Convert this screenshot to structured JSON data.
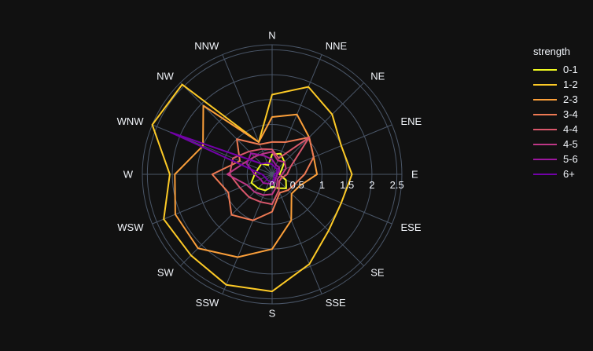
{
  "chart_data": {
    "type": "line-polar",
    "directions": [
      "N",
      "NNE",
      "NE",
      "ENE",
      "E",
      "ESE",
      "SE",
      "SSE",
      "S",
      "SSW",
      "SW",
      "WSW",
      "W",
      "WNW",
      "NW",
      "NNW"
    ],
    "radial_ticks": [
      "0",
      "0.5",
      "1",
      "1.5",
      "2",
      "2.5"
    ],
    "radial_range": [
      0,
      2.6
    ],
    "legend_title": "strength",
    "legend_position": "top-right",
    "series": [
      {
        "name": "0-1",
        "color": "#f0f921",
        "values": [
          0.4,
          0.45,
          0.35,
          0.2,
          0.15,
          0.3,
          0.4,
          0.3,
          0.25,
          0.35,
          0.4,
          0.45,
          0.35,
          0.3,
          0.3,
          0.2
        ]
      },
      {
        "name": "1-2",
        "color": "#fdca26",
        "values": [
          1.6,
          1.9,
          1.7,
          1.5,
          1.6,
          1.5,
          1.6,
          1.95,
          2.35,
          2.4,
          2.3,
          2.35,
          2.05,
          2.6,
          2.55,
          0.7
        ]
      },
      {
        "name": "2-3",
        "color": "#fb9f3a",
        "values": [
          1.15,
          1.3,
          1.05,
          0.9,
          0.9,
          0.6,
          0.55,
          1.0,
          1.5,
          1.8,
          2.1,
          2.1,
          1.95,
          1.5,
          1.95,
          0.7
        ]
      },
      {
        "name": "3-4",
        "color": "#ed7953",
        "values": [
          0.65,
          0.7,
          1.05,
          0.9,
          0.65,
          0.5,
          0.45,
          0.4,
          0.75,
          1.0,
          1.15,
          0.95,
          1.2,
          0.7,
          1.0,
          0.65
        ]
      },
      {
        "name": "4-4",
        "color": "#d8576b",
        "values": [
          0.5,
          0.35,
          1.05,
          0.4,
          0.3,
          0.2,
          0.2,
          0.35,
          0.6,
          0.6,
          0.65,
          0.7,
          0.85,
          0.85,
          0.65,
          0.55
        ]
      },
      {
        "name": "4-5",
        "color": "#bd3786",
        "values": [
          0.45,
          0.3,
          0.35,
          0.3,
          0.2,
          0.15,
          0.15,
          0.25,
          0.4,
          0.45,
          0.5,
          0.55,
          0.9,
          0.6,
          0.5,
          0.45
        ]
      },
      {
        "name": "5-6",
        "color": "#9c179e",
        "values": [
          0.3,
          0.2,
          0.2,
          0.15,
          0.1,
          0.1,
          0.1,
          0.15,
          0.2,
          0.2,
          0.25,
          0.25,
          0.35,
          0.55,
          0.6,
          0.4
        ]
      },
      {
        "name": "6+",
        "color": "#7201a8",
        "values": [
          0.2,
          0.15,
          0.15,
          0.1,
          0.05,
          0.05,
          0.05,
          0.1,
          0.15,
          0.15,
          0.15,
          0.15,
          0.2,
          2.2,
          0.3,
          0.25
        ]
      }
    ]
  }
}
